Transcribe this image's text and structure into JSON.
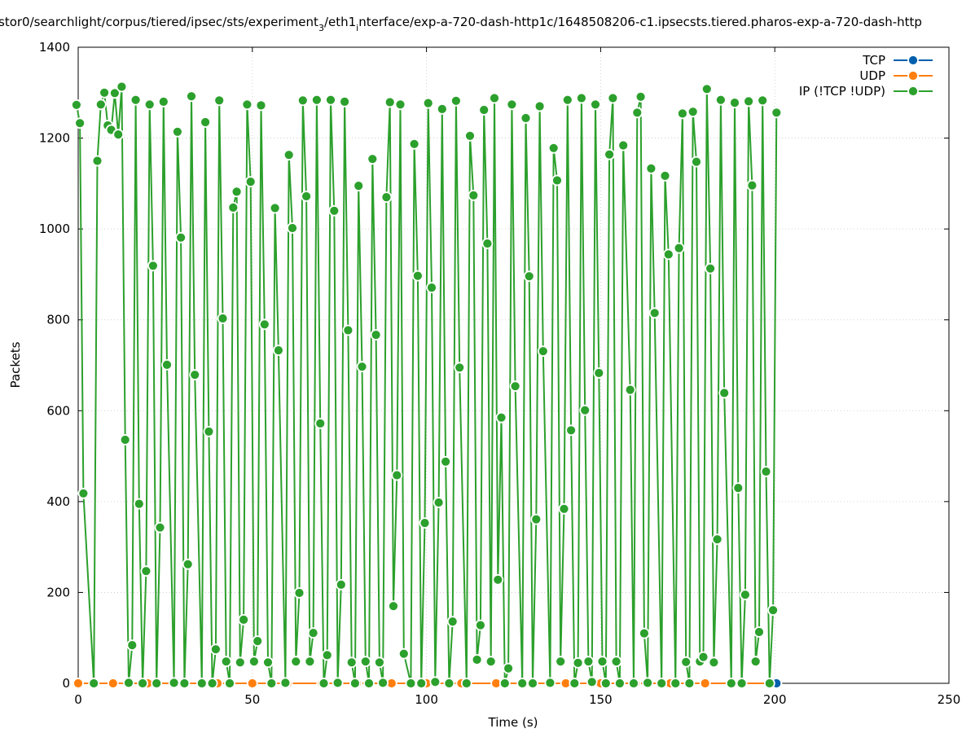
{
  "chart_data": {
    "type": "line",
    "title": "stor0/searchlight/corpus/tiered/ipsec/sts/experiment_3/eth1_interface/exp-a-720-dash-http1c/1648508206-c1.ipsecsts.tiered.pharos-exp-a-720-dash-http",
    "title_main": "stor0/searchlight/corpus/tiered/ipsec/sts/experiment",
    "title_sub1": "3",
    "title_mid": "/eth1",
    "title_sub2": "i",
    "title_rest": "nterface/exp-a-720-dash-http1c/1648508206-c1.ipsecsts.tiered.pharos-exp-a-720-dash-http",
    "xlabel": "Time (s)",
    "ylabel": "Packets",
    "xlim": [
      0,
      250
    ],
    "ylim": [
      0,
      1400
    ],
    "xticks": [
      0,
      50,
      100,
      150,
      200,
      250
    ],
    "yticks": [
      0,
      200,
      400,
      600,
      800,
      1000,
      1200,
      1400
    ],
    "grid": true,
    "legend_position": "top-right",
    "series": [
      {
        "name": "TCP",
        "color": "#0060ad",
        "x": [
          200.5
        ],
        "y": [
          0
        ]
      },
      {
        "name": "UDP",
        "color": "#ff7f0e",
        "x": [
          0,
          10,
          20,
          30,
          40,
          50,
          60,
          70,
          80,
          90,
          100,
          110,
          120,
          130,
          140,
          150,
          160,
          170,
          180,
          190,
          200.5
        ],
        "y": [
          0,
          0,
          0,
          0,
          0,
          0,
          0,
          0,
          0,
          0,
          0,
          0,
          0,
          0,
          0,
          0,
          0,
          0,
          0,
          0,
          0
        ]
      },
      {
        "name": "IP (!TCP  !UDP)",
        "color": "#2ca02c",
        "x": [
          -0.5,
          0.5,
          1.5,
          4.5,
          5.5,
          6.5,
          7.5,
          8.5,
          9.5,
          10.5,
          11.5,
          12.5,
          13.5,
          14.5,
          15.5,
          16.5,
          17.5,
          18.5,
          19.5,
          20.5,
          21.5,
          22.5,
          23.5,
          24.5,
          25.5,
          27.5,
          28.5,
          29.5,
          30.5,
          31.5,
          32.5,
          33.5,
          35.5,
          36.5,
          37.5,
          38.5,
          39.5,
          40.5,
          41.5,
          42.5,
          43.5,
          44.5,
          45.5,
          46.5,
          47.5,
          48.5,
          49.5,
          50.5,
          51.5,
          52.5,
          53.5,
          54.5,
          55.5,
          56.5,
          57.5,
          59.5,
          60.5,
          61.5,
          62.5,
          63.5,
          64.5,
          65.5,
          66.5,
          67.5,
          68.5,
          69.5,
          70.5,
          71.5,
          72.5,
          73.5,
          74.5,
          75.5,
          76.5,
          77.5,
          78.5,
          79.5,
          80.5,
          81.5,
          82.5,
          83.5,
          84.5,
          85.5,
          86.5,
          87.5,
          88.5,
          89.5,
          90.5,
          91.5,
          92.5,
          93.5,
          95.5,
          96.5,
          97.5,
          98.5,
          99.5,
          100.5,
          101.5,
          102.5,
          103.5,
          104.5,
          105.5,
          106.5,
          107.5,
          108.5,
          109.5,
          111.5,
          112.5,
          113.5,
          114.5,
          115.5,
          116.5,
          117.5,
          118.5,
          119.5,
          120.5,
          121.5,
          122.5,
          123.5,
          124.5,
          125.5,
          127.5,
          128.5,
          129.5,
          130.5,
          131.5,
          132.5,
          133.5,
          135.5,
          136.5,
          137.5,
          138.5,
          139.5,
          140.5,
          141.5,
          142.5,
          143.5,
          144.5,
          145.5,
          146.5,
          147.5,
          148.5,
          149.5,
          150.5,
          151.5,
          152.5,
          153.5,
          154.5,
          155.5,
          156.5,
          158.5,
          159.5,
          160.5,
          161.5,
          162.5,
          163.5,
          164.5,
          165.5,
          167.5,
          168.5,
          169.5,
          171.5,
          172.5,
          173.5,
          174.5,
          175.5,
          176.5,
          177.5,
          178.5,
          179.5,
          180.5,
          181.5,
          182.5,
          183.5,
          184.5,
          185.5,
          187.5,
          188.5,
          189.5,
          190.5,
          191.5,
          192.5,
          193.5,
          194.5,
          195.5,
          196.5,
          197.5,
          198.5,
          199.5,
          200.5
        ],
        "y": [
          1273,
          1233,
          418,
          0,
          1150,
          1274,
          1300,
          1228,
          1218,
          1299,
          1208,
          1313,
          536,
          1,
          84,
          1284,
          395,
          0,
          247,
          1274,
          919,
          0,
          343,
          1280,
          701,
          1,
          1214,
          981,
          0,
          262,
          1292,
          679,
          0,
          1235,
          554,
          0,
          75,
          1283,
          803,
          48,
          0,
          1047,
          1082,
          46,
          140,
          1274,
          1104,
          48,
          93,
          1272,
          790,
          46,
          0,
          1046,
          733,
          1,
          1163,
          1002,
          48,
          199,
          1283,
          1072,
          48,
          111,
          1284,
          572,
          0,
          62,
          1284,
          1040,
          1,
          217,
          1280,
          777,
          46,
          0,
          1095,
          697,
          48,
          0,
          1154,
          767,
          46,
          1,
          1070,
          1279,
          170,
          458,
          1274,
          65,
          0,
          1187,
          897,
          0,
          353,
          1277,
          871,
          3,
          398,
          1264,
          488,
          0,
          136,
          1282,
          695,
          0,
          1205,
          1074,
          52,
          128,
          1262,
          968,
          48,
          1288,
          228,
          585,
          0,
          33,
          1274,
          654,
          0,
          1244,
          896,
          0,
          361,
          1270,
          731,
          1,
          1178,
          1107,
          48,
          384,
          1284,
          557,
          0,
          45,
          1288,
          601,
          48,
          3,
          1274,
          683,
          48,
          0,
          1164,
          1288,
          48,
          0,
          1184,
          646,
          0,
          1256,
          1291,
          110,
          1,
          1133,
          815,
          0,
          1117,
          944,
          0,
          958,
          1254,
          47,
          0,
          1258,
          1148,
          48,
          58,
          1308,
          913,
          46,
          317,
          1284,
          639,
          0,
          1278,
          430,
          0,
          195,
          1281,
          1096,
          48,
          113,
          1283,
          466,
          0,
          161,
          1256
        ]
      }
    ]
  }
}
